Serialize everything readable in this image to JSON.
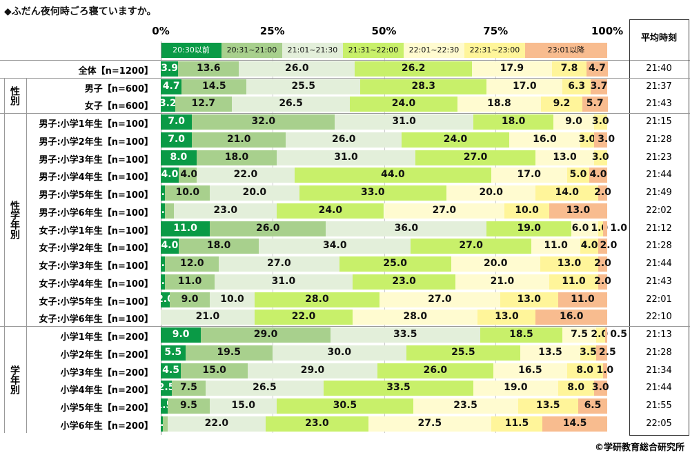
{
  "title": "◆ふだん夜何時ごろ寝ていますか。",
  "avg_header": "平均時刻",
  "footer": "©学研教育総合研究所",
  "colors": [
    "#0a9a46",
    "#a8d08d",
    "#e3efda",
    "#c8f06a",
    "#fffbd0",
    "#fff59a",
    "#f8bc8f"
  ],
  "chart_data": {
    "type": "bar",
    "stacked": true,
    "orientation": "horizontal",
    "title": "◆ふだん夜何時ごろ寝ていますか。",
    "xlim": [
      0,
      100
    ],
    "ticks": [
      "0%",
      "25%",
      "50%",
      "75%",
      "100%"
    ],
    "legend": [
      "20:30以前",
      "20:31~21:00",
      "21:01~21:30",
      "21:31~22:00",
      "22:01~22:30",
      "22:31~23:00",
      "23:01以降"
    ],
    "groups": [
      {
        "label": "",
        "rows": [
          0
        ]
      },
      {
        "label": "性別",
        "rows": [
          1,
          2
        ]
      },
      {
        "label": "性学年別",
        "rows": [
          3,
          4,
          5,
          6,
          7,
          8,
          9,
          10,
          11,
          12,
          13,
          14
        ]
      },
      {
        "label": "学年別",
        "rows": [
          15,
          16,
          17,
          18,
          19,
          20
        ]
      }
    ],
    "rows": [
      {
        "label": "全体【n=1200】",
        "values": [
          3.9,
          13.6,
          26.0,
          26.2,
          17.9,
          7.8,
          4.7
        ],
        "avg": "21:40"
      },
      {
        "label": "男子【n=600】",
        "values": [
          4.7,
          14.5,
          25.5,
          28.3,
          17.0,
          6.3,
          3.7
        ],
        "avg": "21:37"
      },
      {
        "label": "女子【n=600】",
        "values": [
          3.2,
          12.7,
          26.5,
          24.0,
          18.8,
          9.2,
          5.7
        ],
        "avg": "21:43"
      },
      {
        "label": "男子:小学1年生【n=100】",
        "values": [
          7.0,
          32.0,
          31.0,
          18.0,
          9.0,
          3.0,
          0
        ],
        "avg": "21:15"
      },
      {
        "label": "男子:小学2年生【n=100】",
        "values": [
          7.0,
          21.0,
          26.0,
          24.0,
          16.0,
          3.0,
          3.0
        ],
        "avg": "21:28"
      },
      {
        "label": "男子:小学3年生【n=100】",
        "values": [
          8.0,
          18.0,
          31.0,
          27.0,
          13.0,
          3.0,
          0
        ],
        "avg": "21:23"
      },
      {
        "label": "男子:小学4年生【n=100】",
        "values": [
          4.0,
          4.0,
          22.0,
          44.0,
          17.0,
          5.0,
          4.0
        ],
        "avg": "21:44"
      },
      {
        "label": "男子:小学5年生【n=100】",
        "values": [
          1.0,
          10.0,
          20.0,
          33.0,
          20.0,
          14.0,
          2.0
        ],
        "avg": "21:49"
      },
      {
        "label": "男子:小学6年生【n=100】",
        "values": [
          1.0,
          2.0,
          23.0,
          24.0,
          27.0,
          10.0,
          13.0
        ],
        "avg": "22:02"
      },
      {
        "label": "女子:小学1年生【n=100】",
        "values": [
          11.0,
          26.0,
          36.0,
          19.0,
          6.0,
          1.0,
          1.0
        ],
        "avg": "21:12"
      },
      {
        "label": "女子:小学2年生【n=100】",
        "values": [
          4.0,
          18.0,
          34.0,
          27.0,
          11.0,
          4.0,
          2.0
        ],
        "avg": "21:28"
      },
      {
        "label": "女子:小学3年生【n=100】",
        "values": [
          1.0,
          12.0,
          27.0,
          25.0,
          20.0,
          13.0,
          2.0
        ],
        "avg": "21:44"
      },
      {
        "label": "女子:小学4年生【n=100】",
        "values": [
          1.0,
          11.0,
          31.0,
          23.0,
          21.0,
          11.0,
          2.0
        ],
        "avg": "21:43"
      },
      {
        "label": "女子:小学5年生【n=100】",
        "values": [
          2.0,
          9.0,
          10.0,
          28.0,
          27.0,
          13.0,
          11.0
        ],
        "avg": "22:01"
      },
      {
        "label": "女子:小学6年生【n=100】",
        "values": [
          0,
          0,
          21.0,
          22.0,
          28.0,
          13.0,
          16.0
        ],
        "avg": "22:10"
      },
      {
        "label": "小学1年生【n=200】",
        "values": [
          9.0,
          29.0,
          33.5,
          18.5,
          7.5,
          2.0,
          0.5
        ],
        "avg": "21:13"
      },
      {
        "label": "小学2年生【n=200】",
        "values": [
          5.5,
          19.5,
          30.0,
          25.5,
          13.5,
          3.5,
          2.5
        ],
        "avg": "21:28"
      },
      {
        "label": "小学3年生【n=200】",
        "values": [
          4.5,
          15.0,
          29.0,
          26.0,
          16.5,
          8.0,
          1.0
        ],
        "avg": "21:34"
      },
      {
        "label": "小学4年生【n=200】",
        "values": [
          2.5,
          7.5,
          26.5,
          33.5,
          19.0,
          8.0,
          3.0
        ],
        "avg": "21:44"
      },
      {
        "label": "小学5年生【n=200】",
        "values": [
          1.5,
          9.5,
          15.0,
          30.5,
          23.5,
          13.5,
          6.5
        ],
        "avg": "21:55"
      },
      {
        "label": "小学6年生【n=200】",
        "values": [
          0.5,
          1.0,
          22.0,
          23.0,
          27.5,
          11.5,
          14.5
        ],
        "avg": "22:05"
      }
    ]
  }
}
